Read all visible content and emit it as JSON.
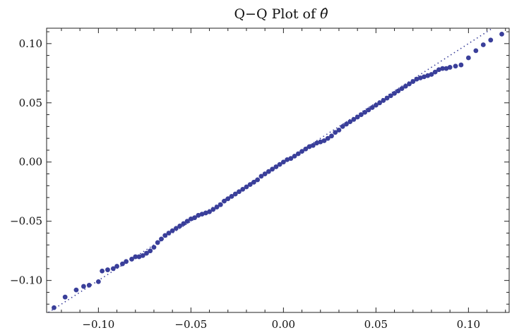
{
  "chart_data": {
    "type": "scatter",
    "title": "Q−Q Plot of ",
    "title_symbol": "θ̂",
    "xlabel": "",
    "ylabel": "",
    "xlim": [
      -0.128,
      0.122
    ],
    "ylim": [
      -0.127,
      0.113
    ],
    "x_ticks": [
      -0.1,
      -0.05,
      0.0,
      0.05,
      0.1
    ],
    "x_tick_labels": [
      "−0.10",
      "−0.05",
      "0.00",
      "0.05",
      "0.10"
    ],
    "y_ticks": [
      -0.1,
      -0.05,
      0.0,
      0.05,
      0.1
    ],
    "y_tick_labels": [
      "−0.10",
      "−0.05",
      "0.00",
      "0.05",
      "0.10"
    ],
    "grid": false,
    "marker_color": "#3a3f9a",
    "reference_line": {
      "slope": 1,
      "intercept": 0,
      "style": "dotted"
    },
    "series": [
      {
        "points": [
          [
            -0.124,
            -0.123
          ],
          [
            -0.118,
            -0.114
          ],
          [
            -0.112,
            -0.108
          ],
          [
            -0.108,
            -0.105
          ],
          [
            -0.105,
            -0.104
          ],
          [
            -0.1,
            -0.101
          ],
          [
            -0.098,
            -0.092
          ],
          [
            -0.095,
            -0.091
          ],
          [
            -0.092,
            -0.09
          ],
          [
            -0.09,
            -0.088
          ],
          [
            -0.087,
            -0.086
          ],
          [
            -0.085,
            -0.084
          ],
          [
            -0.082,
            -0.082
          ],
          [
            -0.08,
            -0.08
          ],
          [
            -0.078,
            -0.08
          ],
          [
            -0.076,
            -0.079
          ],
          [
            -0.074,
            -0.077
          ],
          [
            -0.072,
            -0.075
          ],
          [
            -0.07,
            -0.072
          ],
          [
            -0.068,
            -0.068
          ],
          [
            -0.066,
            -0.065
          ],
          [
            -0.064,
            -0.062
          ],
          [
            -0.062,
            -0.06
          ],
          [
            -0.06,
            -0.058
          ],
          [
            -0.058,
            -0.056
          ],
          [
            -0.056,
            -0.054
          ],
          [
            -0.054,
            -0.052
          ],
          [
            -0.052,
            -0.05
          ],
          [
            -0.05,
            -0.048
          ],
          [
            -0.048,
            -0.047
          ],
          [
            -0.046,
            -0.045
          ],
          [
            -0.044,
            -0.044
          ],
          [
            -0.042,
            -0.043
          ],
          [
            -0.04,
            -0.042
          ],
          [
            -0.038,
            -0.04
          ],
          [
            -0.036,
            -0.038
          ],
          [
            -0.034,
            -0.036
          ],
          [
            -0.032,
            -0.033
          ],
          [
            -0.03,
            -0.031
          ],
          [
            -0.028,
            -0.029
          ],
          [
            -0.026,
            -0.027
          ],
          [
            -0.024,
            -0.025
          ],
          [
            -0.022,
            -0.023
          ],
          [
            -0.02,
            -0.021
          ],
          [
            -0.018,
            -0.019
          ],
          [
            -0.016,
            -0.017
          ],
          [
            -0.014,
            -0.015
          ],
          [
            -0.012,
            -0.012
          ],
          [
            -0.01,
            -0.01
          ],
          [
            -0.008,
            -0.008
          ],
          [
            -0.006,
            -0.006
          ],
          [
            -0.004,
            -0.004
          ],
          [
            -0.002,
            -0.002
          ],
          [
            0.0,
            0.0
          ],
          [
            0.002,
            0.002
          ],
          [
            0.004,
            0.003
          ],
          [
            0.006,
            0.005
          ],
          [
            0.008,
            0.007
          ],
          [
            0.01,
            0.009
          ],
          [
            0.012,
            0.011
          ],
          [
            0.014,
            0.013
          ],
          [
            0.016,
            0.014
          ],
          [
            0.018,
            0.016
          ],
          [
            0.02,
            0.017
          ],
          [
            0.022,
            0.018
          ],
          [
            0.024,
            0.02
          ],
          [
            0.026,
            0.022
          ],
          [
            0.028,
            0.025
          ],
          [
            0.03,
            0.027
          ],
          [
            0.032,
            0.03
          ],
          [
            0.034,
            0.032
          ],
          [
            0.036,
            0.034
          ],
          [
            0.038,
            0.036
          ],
          [
            0.04,
            0.038
          ],
          [
            0.042,
            0.04
          ],
          [
            0.044,
            0.042
          ],
          [
            0.046,
            0.044
          ],
          [
            0.048,
            0.046
          ],
          [
            0.05,
            0.048
          ],
          [
            0.052,
            0.05
          ],
          [
            0.054,
            0.052
          ],
          [
            0.056,
            0.054
          ],
          [
            0.058,
            0.056
          ],
          [
            0.06,
            0.058
          ],
          [
            0.062,
            0.06
          ],
          [
            0.064,
            0.062
          ],
          [
            0.066,
            0.064
          ],
          [
            0.068,
            0.066
          ],
          [
            0.07,
            0.068
          ],
          [
            0.072,
            0.07
          ],
          [
            0.074,
            0.071
          ],
          [
            0.076,
            0.072
          ],
          [
            0.078,
            0.073
          ],
          [
            0.08,
            0.074
          ],
          [
            0.082,
            0.076
          ],
          [
            0.084,
            0.078
          ],
          [
            0.086,
            0.079
          ],
          [
            0.088,
            0.079
          ],
          [
            0.09,
            0.08
          ],
          [
            0.093,
            0.081
          ],
          [
            0.096,
            0.082
          ],
          [
            0.1,
            0.088
          ],
          [
            0.104,
            0.094
          ],
          [
            0.108,
            0.099
          ],
          [
            0.112,
            0.103
          ],
          [
            0.118,
            0.108
          ]
        ]
      }
    ]
  }
}
